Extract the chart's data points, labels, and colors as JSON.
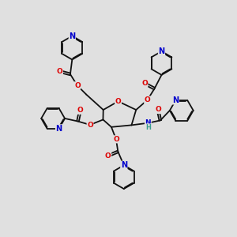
{
  "bg_color": "#e0e0e0",
  "bond_color": "#111111",
  "oxygen_color": "#dd0000",
  "nitrogen_color": "#0000cc",
  "hydrogen_color": "#3a9d8f",
  "lw": 1.3,
  "fs": 6.5,
  "dbl_sep": 0.045,
  "ring_scale": 0.52,
  "xlim": [
    0,
    10
  ],
  "ylim": [
    0,
    10
  ]
}
